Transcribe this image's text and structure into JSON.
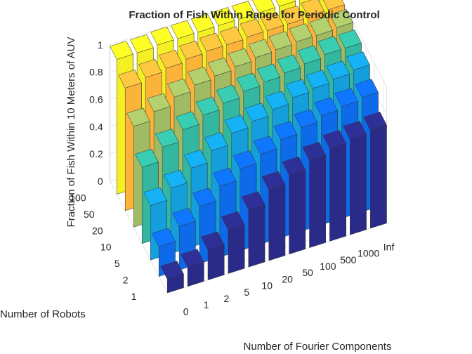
{
  "chart_data": {
    "type": "bar3d",
    "title": "Fraction of Fish Within Range for Periodic Control",
    "xlabel": "Number of Fourier Components",
    "ylabel": "Number of Robots",
    "zlabel": "Fraction of Fish Within 10 Meters of AUV",
    "x_ticks": [
      "0",
      "1",
      "2",
      "5",
      "10",
      "20",
      "50",
      "100",
      "500",
      "1000",
      "Inf"
    ],
    "y_ticks": [
      "1",
      "2",
      "5",
      "10",
      "20",
      "50",
      "100"
    ],
    "z_ticks": [
      "0",
      "0.2",
      "0.4",
      "0.6",
      "0.8",
      "1"
    ],
    "zlim": [
      0,
      1
    ],
    "colormap": "parula",
    "rows": [
      {
        "robots": "1",
        "color": "#2a2a88",
        "values": [
          0.1,
          0.14,
          0.22,
          0.32,
          0.42,
          0.52,
          0.58,
          0.64,
          0.68,
          0.7,
          0.72
        ]
      },
      {
        "robots": "2",
        "color": "#0d6ae8",
        "values": [
          0.22,
          0.32,
          0.42,
          0.52,
          0.6,
          0.66,
          0.72,
          0.76,
          0.8,
          0.82,
          0.84
        ]
      },
      {
        "robots": "5",
        "color": "#149fdc",
        "values": [
          0.4,
          0.48,
          0.58,
          0.66,
          0.74,
          0.78,
          0.82,
          0.86,
          0.88,
          0.9,
          0.92
        ]
      },
      {
        "robots": "10",
        "color": "#33b7a0",
        "values": [
          0.56,
          0.66,
          0.74,
          0.8,
          0.84,
          0.88,
          0.9,
          0.92,
          0.94,
          0.96,
          0.96
        ]
      },
      {
        "robots": "20",
        "color": "#a0bb63",
        "values": [
          0.74,
          0.8,
          0.86,
          0.9,
          0.92,
          0.94,
          0.96,
          0.97,
          0.98,
          0.98,
          0.99
        ]
      },
      {
        "robots": "50",
        "color": "#fbb33a",
        "values": [
          0.9,
          0.93,
          0.95,
          0.97,
          0.98,
          0.98,
          0.99,
          0.99,
          0.99,
          1.0,
          1.0
        ]
      },
      {
        "robots": "100",
        "color": "#f4f024",
        "values": [
          0.99,
          0.99,
          1.0,
          1.0,
          1.0,
          1.0,
          1.0,
          1.0,
          1.0,
          1.0,
          1.0
        ]
      }
    ]
  }
}
